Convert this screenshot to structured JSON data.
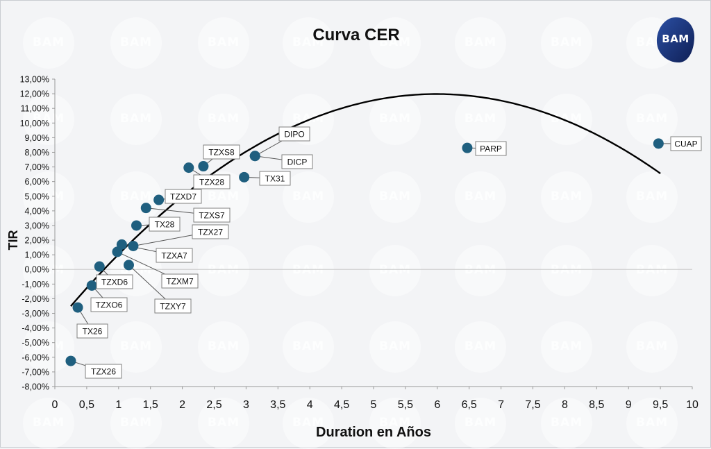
{
  "chart_data": {
    "type": "scatter",
    "title": "Curva CER",
    "xlabel": "Duration en Años",
    "ylabel": "TIR",
    "xlim": [
      0,
      10
    ],
    "ylim": [
      -8,
      13
    ],
    "x_ticks": [
      "0",
      "0,5",
      "1",
      "1,5",
      "2",
      "2,5",
      "3",
      "3,5",
      "4",
      "4,5",
      "5",
      "5,5",
      "6",
      "6,5",
      "7",
      "7,5",
      "8",
      "8,5",
      "9",
      "9,5",
      "10"
    ],
    "y_ticks": [
      "-8,00%",
      "-7,00%",
      "-6,00%",
      "-5,00%",
      "-4,00%",
      "-3,00%",
      "-2,00%",
      "-1,00%",
      "0,00%",
      "1,00%",
      "2,00%",
      "3,00%",
      "4,00%",
      "5,00%",
      "6,00%",
      "7,00%",
      "8,00%",
      "9,00%",
      "10,00%",
      "11,00%",
      "12,00%",
      "13,00%"
    ],
    "points": [
      {
        "label": "TZX26",
        "x": 0.25,
        "y": -6.25
      },
      {
        "label": "TX26",
        "x": 0.36,
        "y": -2.6
      },
      {
        "label": "TZXO6",
        "x": 0.58,
        "y": -1.1
      },
      {
        "label": "TZXD6",
        "x": 0.7,
        "y": 0.2
      },
      {
        "label": "TZXM7",
        "x": 0.98,
        "y": 1.2
      },
      {
        "label": "TZXA7",
        "x": 1.05,
        "y": 1.7
      },
      {
        "label": "TZXY7",
        "x": 1.16,
        "y": 0.3
      },
      {
        "label": "TZX27",
        "x": 1.23,
        "y": 1.6
      },
      {
        "label": "TX28",
        "x": 1.28,
        "y": 3.0
      },
      {
        "label": "TZXS7",
        "x": 1.43,
        "y": 4.2
      },
      {
        "label": "TZXD7",
        "x": 1.63,
        "y": 4.75
      },
      {
        "label": "TZX28",
        "x": 2.1,
        "y": 6.95
      },
      {
        "label": "TZXS8",
        "x": 2.33,
        "y": 7.05
      },
      {
        "label": "TX31",
        "x": 2.97,
        "y": 6.3
      },
      {
        "label": "DIPO",
        "x": 3.14,
        "y": 7.75
      },
      {
        "label": "DICP",
        "x": 3.14,
        "y": 7.75
      },
      {
        "label": "PARP",
        "x": 6.47,
        "y": 8.3
      },
      {
        "label": "CUAP",
        "x": 9.47,
        "y": 8.6
      }
    ],
    "trendline": {
      "type": "polynomial",
      "x_range": [
        0.25,
        9.5
      ],
      "coefficients": [
        -3.8,
        5.27,
        -0.44
      ]
    },
    "grid": false,
    "legend": "none",
    "colors": {
      "marker": "#1f5f7f",
      "trend": "#000000",
      "zero_line": "#d0d0d0",
      "label_box_border": "#7f7f7f"
    }
  },
  "watermark_text": "BAM",
  "logo_text": "BAM"
}
